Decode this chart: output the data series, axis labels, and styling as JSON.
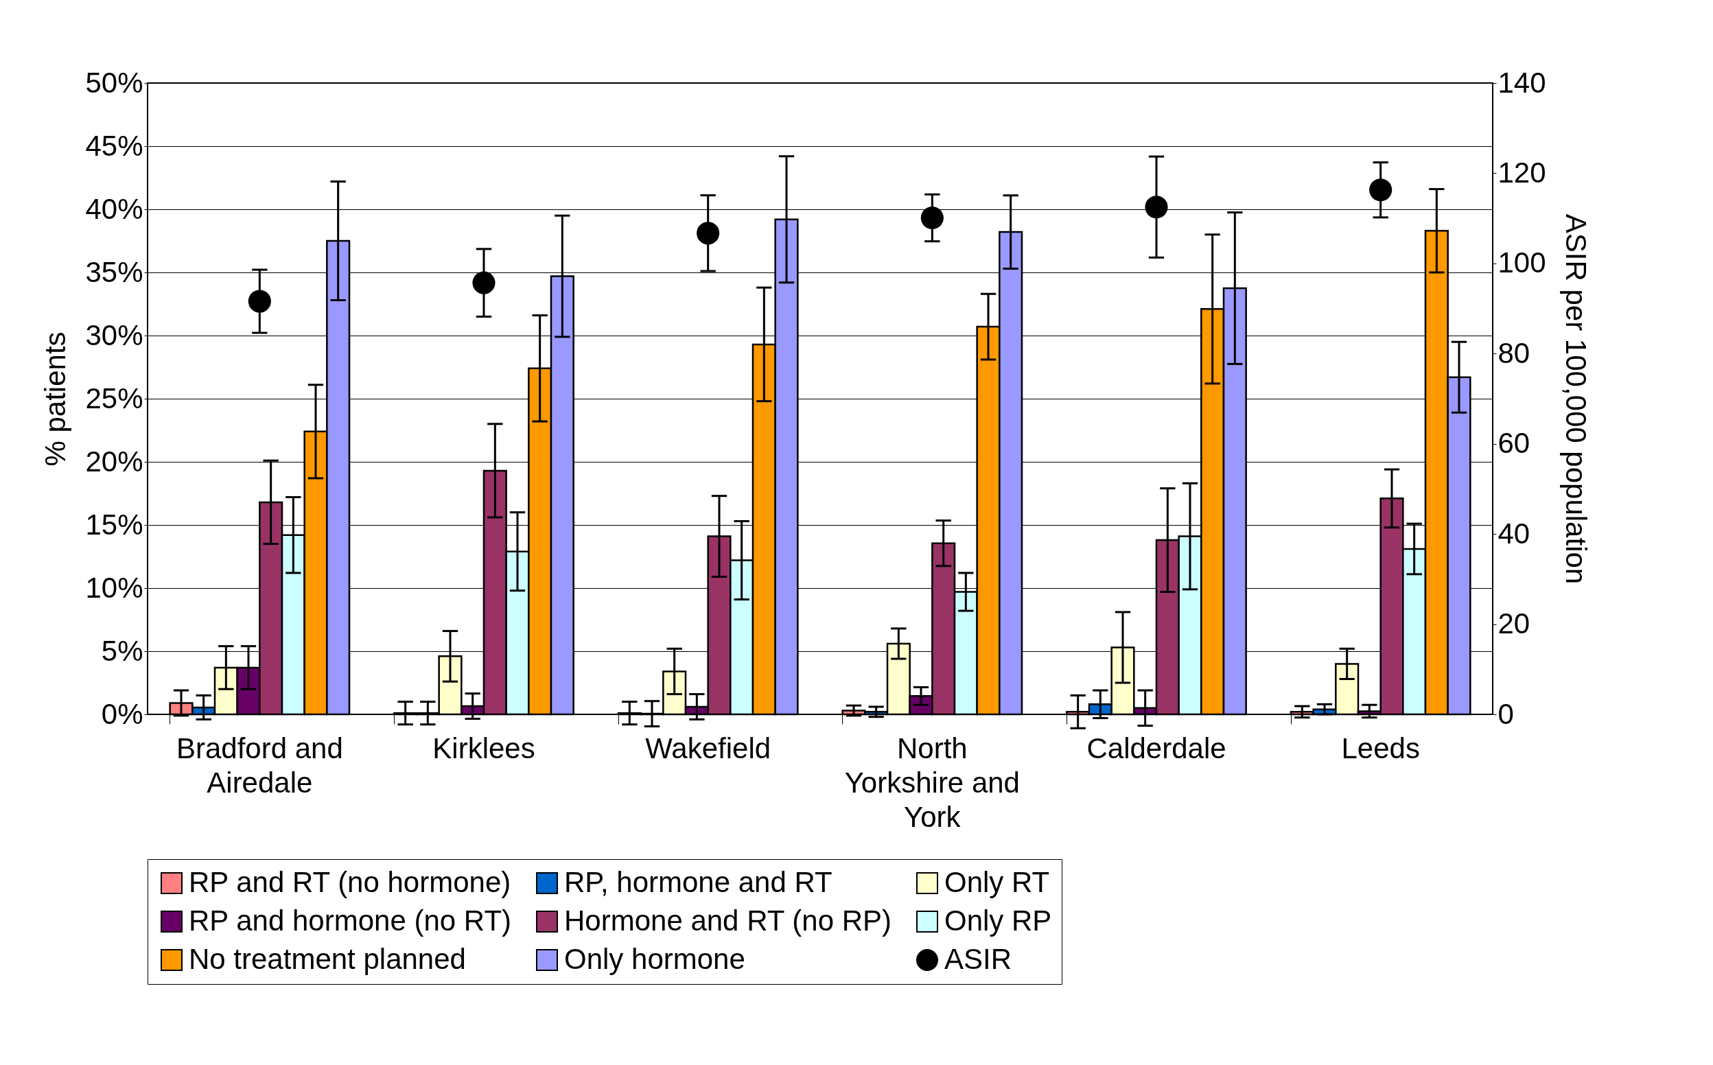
{
  "chart_data": {
    "type": "bar",
    "ylabel": "% patients",
    "y2label": "ASIR per 100,000 population",
    "categories": [
      "Bradford and Airedale",
      "Kirklees",
      "Wakefield",
      "North Yorkshire and York",
      "Calderdale",
      "Leeds"
    ],
    "series": [
      {
        "name": "RP and RT (no hormone)",
        "color": "#ff8080",
        "values": [
          0.9,
          0.1,
          0.1,
          0.3,
          0.2,
          0.2
        ],
        "errors": [
          1.0,
          0.9,
          0.9,
          0.4,
          1.3,
          0.45
        ]
      },
      {
        "name": "RP, hormone and RT",
        "color": "#0066cc",
        "values": [
          0.55,
          0.1,
          0.05,
          0.2,
          0.8,
          0.4
        ],
        "errors": [
          0.95,
          0.9,
          1.0,
          0.4,
          1.1,
          0.4
        ]
      },
      {
        "name": "Only RT",
        "color": "#ffffcc",
        "values": [
          3.7,
          4.6,
          3.4,
          5.6,
          5.3,
          4.0
        ],
        "errors": [
          1.7,
          2.0,
          1.8,
          1.2,
          2.8,
          1.2
        ]
      },
      {
        "name": "RP and hormone (no RT)",
        "color": "#660066",
        "values": [
          3.7,
          0.65,
          0.6,
          1.45,
          0.5,
          0.25
        ],
        "errors": [
          1.7,
          1.0,
          1.0,
          0.7,
          1.4,
          0.5
        ]
      },
      {
        "name": "Hormone and RT (no RP)",
        "color": "#993366",
        "values": [
          16.8,
          19.3,
          14.1,
          13.55,
          13.8,
          17.1
        ],
        "errors": [
          3.3,
          3.7,
          3.2,
          1.8,
          4.1,
          2.3
        ]
      },
      {
        "name": "Only RP",
        "color": "#ccffff",
        "values": [
          14.2,
          12.9,
          12.2,
          9.7,
          14.1,
          13.1
        ],
        "errors": [
          3.0,
          3.1,
          3.1,
          1.5,
          4.2,
          2.0
        ]
      },
      {
        "name": "No treatment planned",
        "color": "#ff9900",
        "values": [
          22.4,
          27.4,
          29.3,
          30.7,
          32.1,
          38.3
        ],
        "errors": [
          3.7,
          4.2,
          4.5,
          2.6,
          5.9,
          3.3
        ]
      },
      {
        "name": "Only hormone",
        "color": "#9999ff",
        "values": [
          37.5,
          34.7,
          39.2,
          38.2,
          33.75,
          26.7
        ],
        "errors": [
          4.7,
          4.8,
          5.0,
          2.9,
          6.0,
          2.8
        ]
      },
      {
        "name": "ASIR",
        "type": "scatter",
        "axis": "y2",
        "marker": "circle",
        "color": "#000000",
        "values": [
          91.6,
          95.7,
          106.7,
          110.1,
          112.5,
          116.3
        ],
        "errors": [
          7.0,
          7.5,
          8.4,
          5.2,
          11.2,
          6.1
        ]
      }
    ],
    "ylim": [
      0,
      50
    ],
    "yticks": [
      {
        "value": 0,
        "label": "0%"
      },
      {
        "value": 5,
        "label": "5%"
      },
      {
        "value": 10,
        "label": "10%"
      },
      {
        "value": 15,
        "label": "15%"
      },
      {
        "value": 20,
        "label": "20%"
      },
      {
        "value": 25,
        "label": "25%"
      },
      {
        "value": 30,
        "label": "30%"
      },
      {
        "value": 35,
        "label": "35%"
      },
      {
        "value": 40,
        "label": "40%"
      },
      {
        "value": 45,
        "label": "45%"
      },
      {
        "value": 50,
        "label": "50%"
      }
    ],
    "y2lim": [
      0,
      140
    ],
    "y2ticks": [
      0,
      20,
      40,
      60,
      80,
      100,
      120,
      140
    ],
    "grid": "y",
    "legend": "bottom"
  }
}
